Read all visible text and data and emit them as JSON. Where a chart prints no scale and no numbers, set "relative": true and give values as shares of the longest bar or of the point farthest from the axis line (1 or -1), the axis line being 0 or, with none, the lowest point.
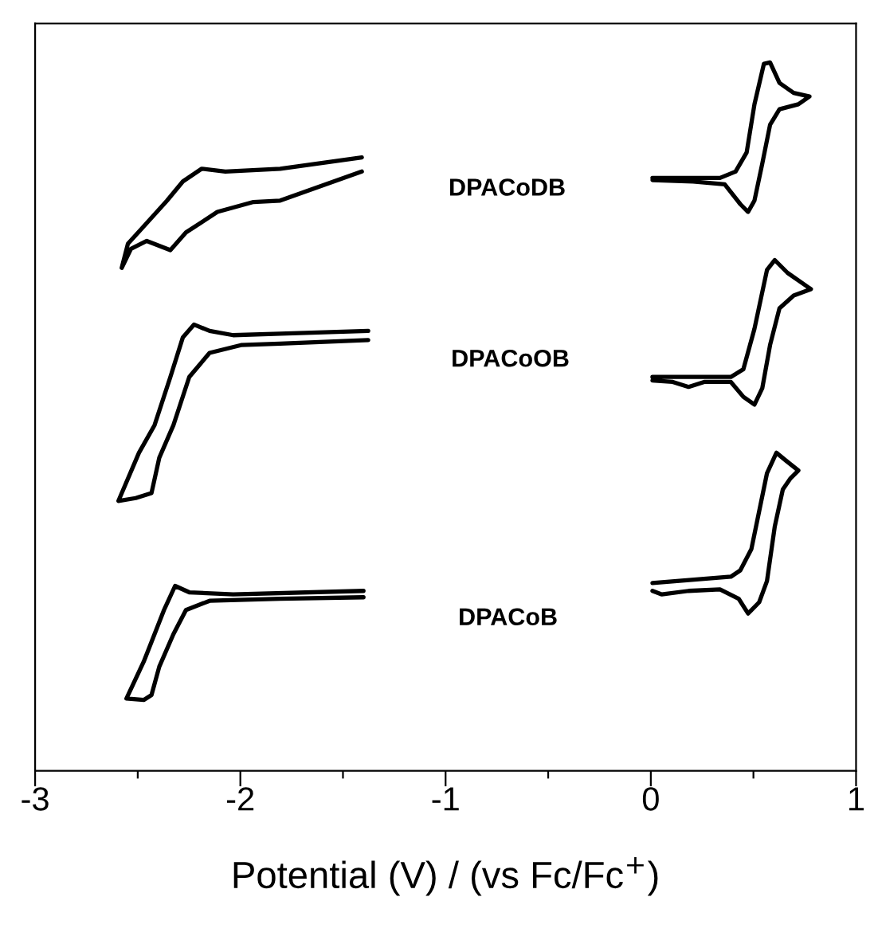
{
  "chart_data": {
    "type": "line",
    "relative": true,
    "xlabel": "Potential (V) / (vs Fc/Fc$^{+}$)",
    "xlim": [
      -3,
      1
    ],
    "xticks": [
      -3,
      {
        "value": -2.5,
        "label": null
      },
      -2,
      {
        "value": -1.5,
        "label": null
      },
      -1,
      {
        "value": -0.5,
        "label": null
      },
      0,
      {
        "value": 0.5,
        "label": null
      },
      1
    ],
    "tick_labels": "x",
    "grid": false,
    "legend": false,
    "marker": "none",
    "line_style": "solid",
    "series": [
      {
        "color": "#000000",
        "x": [
          -1.408,
          -1.806,
          -2.073,
          -2.188,
          -2.28,
          -2.357,
          -2.479,
          -2.548,
          -2.578,
          -2.533,
          -2.456,
          -2.341,
          -2.265,
          -2.112,
          -1.936,
          -1.806,
          -1.408
        ],
        "values": [
          0.866,
          0.85,
          0.846,
          0.85,
          0.832,
          0.805,
          0.766,
          0.744,
          0.71,
          0.737,
          0.748,
          0.735,
          0.76,
          0.789,
          0.803,
          0.805,
          0.846
        ]
      },
      {
        "color": "#000000",
        "x": [
          0.008,
          0.337,
          0.413,
          0.467,
          0.505,
          0.551,
          0.581,
          0.627,
          0.696,
          0.773,
          0.719,
          0.627,
          0.581,
          0.543,
          0.505,
          0.474,
          0.436,
          0.36,
          0.207,
          0.008
        ],
        "values": [
          0.837,
          0.837,
          0.846,
          0.873,
          0.941,
          0.998,
          1.0,
          0.971,
          0.957,
          0.952,
          0.941,
          0.934,
          0.912,
          0.857,
          0.805,
          0.789,
          0.8,
          0.828,
          0.832,
          0.834
        ]
      },
      {
        "color": "#000000",
        "x": [
          -1.377,
          -1.806,
          -2.035,
          -2.15,
          -2.226,
          -2.28,
          -2.341,
          -2.418,
          -2.494,
          -2.594,
          -2.51,
          -2.433,
          -2.395,
          -2.326,
          -2.249,
          -2.15,
          -1.997,
          -1.806,
          -1.377
        ],
        "values": [
          0.621,
          0.617,
          0.615,
          0.621,
          0.63,
          0.612,
          0.556,
          0.488,
          0.449,
          0.381,
          0.385,
          0.392,
          0.442,
          0.488,
          0.556,
          0.59,
          0.601,
          0.603,
          0.608
        ]
      },
      {
        "color": "#000000",
        "x": [
          0.008,
          0.39,
          0.451,
          0.505,
          0.566,
          0.604,
          0.666,
          0.78,
          0.696,
          0.627,
          0.581,
          0.543,
          0.505,
          0.451,
          0.39,
          0.26,
          0.184,
          0.107,
          0.008
        ],
        "values": [
          0.556,
          0.556,
          0.567,
          0.624,
          0.707,
          0.721,
          0.703,
          0.68,
          0.671,
          0.653,
          0.601,
          0.54,
          0.517,
          0.528,
          0.549,
          0.549,
          0.542,
          0.549,
          0.551
        ]
      },
      {
        "color": "#000000",
        "x": [
          -1.4,
          -2.035,
          -2.249,
          -2.318,
          -2.372,
          -2.418,
          -2.471,
          -2.555,
          -2.471,
          -2.433,
          -2.395,
          -2.326,
          -2.265,
          -2.15,
          -1.806,
          -1.4
        ],
        "values": [
          0.254,
          0.249,
          0.252,
          0.261,
          0.227,
          0.193,
          0.154,
          0.102,
          0.1,
          0.107,
          0.147,
          0.193,
          0.227,
          0.24,
          0.243,
          0.245
        ]
      },
      {
        "color": "#000000",
        "x": [
          0.008,
          0.39,
          0.436,
          0.49,
          0.566,
          0.612,
          0.658,
          0.719,
          0.681,
          0.643,
          0.604,
          0.566,
          0.528,
          0.474,
          0.428,
          0.337,
          0.184,
          0.054,
          0.008
        ],
        "values": [
          0.265,
          0.274,
          0.283,
          0.313,
          0.42,
          0.449,
          0.438,
          0.424,
          0.413,
          0.397,
          0.345,
          0.268,
          0.238,
          0.222,
          0.243,
          0.256,
          0.254,
          0.249,
          0.254
        ]
      }
    ],
    "annotations": [
      "DPACoDB",
      "DPACoOB",
      "DPACoB"
    ]
  }
}
